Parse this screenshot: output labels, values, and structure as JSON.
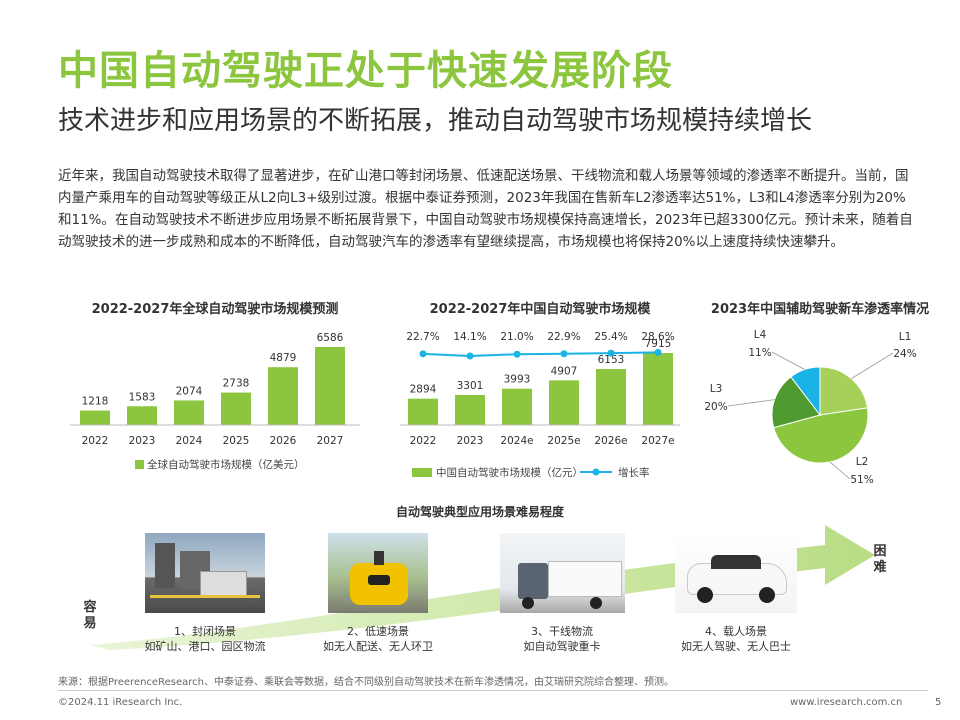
{
  "title": "中国自动驾驶正处于快速发展阶段",
  "subtitle": "技术进步和应用场景的不断拓展，推动自动驾驶市场规模持续增长",
  "intro": "近年来，我国自动驾驶技术取得了显著进步，在矿山港口等封闭场景、低速配送场景、干线物流和载人场景等领域的渗透率不断提升。当前，国内量产乘用车的自动驾驶等级正从L2向L3+级别过渡。根据中泰证券预测，2023年我国在售新车L2渗透率达51%，L3和L4渗透率分别为20%和11%。在自动驾驶技术不断进步应用场景不断拓展背景下，中国自动驾驶市场规模保持高速增长，2023年已超3300亿元。预计未来，随着自动驾驶技术的进一步成熟和成本的不断降低，自动驾驶汽车的渗透率有望继续提高，市场规模也将保持20%以上速度持续快速攀升。",
  "colors": {
    "accent": "#8cc63f",
    "dark_green": "#4e9a2e",
    "cyan": "#1ab3e6"
  },
  "chart_data": [
    {
      "type": "bar",
      "title": "2022-2027年全球自动驾驶市场规模预测",
      "categories": [
        "2022",
        "2023",
        "2024",
        "2025",
        "2026",
        "2027"
      ],
      "series": [
        {
          "name": "全球自动驾驶市场规模（亿美元）",
          "values": [
            1218,
            1583,
            2074,
            2738,
            4879,
            6586
          ]
        }
      ]
    },
    {
      "type": "bar",
      "title": "2022-2027年中国自动驾驶市场规模",
      "categories": [
        "2022",
        "2023",
        "2024e",
        "2025e",
        "2026e",
        "2027e"
      ],
      "series": [
        {
          "name": "中国自动驾驶市场规模（亿元）",
          "values": [
            2894,
            3301,
            3993,
            4907,
            6153,
            7915
          ]
        },
        {
          "name": "增长率",
          "type": "line",
          "values": [
            "22.7%",
            "14.1%",
            "21.0%",
            "22.9%",
            "25.4%",
            "28.6%"
          ]
        }
      ]
    },
    {
      "type": "pie",
      "title": "2023年中国辅助驾驶新车渗透率情况",
      "labels": [
        "L1",
        "L2",
        "L3",
        "L4"
      ],
      "values": [
        24,
        51,
        20,
        11
      ],
      "value_labels": [
        "24%",
        "51%",
        "20%",
        "11%"
      ],
      "colors": [
        "#a6d05a",
        "#8cc63f",
        "#4e9a2e",
        "#1ab3e6"
      ]
    }
  ],
  "scenes": {
    "title": "自动驾驶典型应用场景难易程度",
    "easy": "容易",
    "hard": "困难",
    "items": [
      {
        "line1": "1、封闭场景",
        "line2": "如矿山、港口、园区物流"
      },
      {
        "line1": "2、低速场景",
        "line2": "如无人配送、无人环卫"
      },
      {
        "line1": "3、干线物流",
        "line2": "如自动驾驶重卡"
      },
      {
        "line1": "4、载人场景",
        "line2": "如无人驾驶、无人巴士"
      }
    ]
  },
  "source": "来源：根据PreerenceResearch、中泰证券、乘联会等数据，结合不同级别自动驾驶技术在新车渗透情况，由艾瑞研究院综合整理、预测。",
  "footer": {
    "copyright": "©2024.11 iResearch Inc.",
    "site": "www.iresearch.com.cn",
    "page": "5"
  }
}
